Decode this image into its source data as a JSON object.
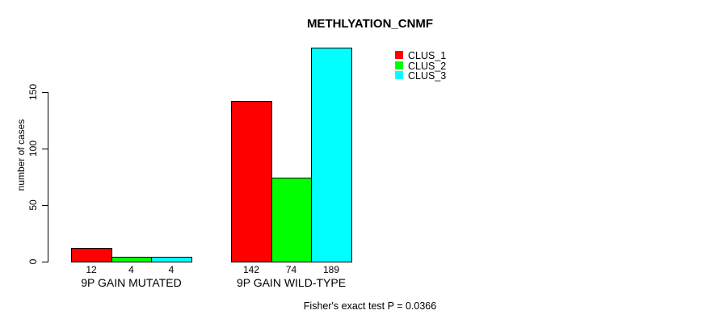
{
  "title": "METHLYATION_CNMF",
  "ylabel": "number of cases",
  "annotation": "Fisher's exact test P = 0.0366",
  "chart_data": {
    "type": "bar",
    "grouped": true,
    "title": "METHLYATION_CNMF",
    "xlabel": "",
    "ylabel": "number of cases",
    "categories": [
      "9P GAIN MUTATED",
      "9P GAIN WILD-TYPE"
    ],
    "series": [
      {
        "name": "CLUS_1",
        "color": "#ff0000",
        "values": [
          12,
          142
        ]
      },
      {
        "name": "CLUS_2",
        "color": "#00ff00",
        "values": [
          4,
          74
        ]
      },
      {
        "name": "CLUS_3",
        "color": "#00ffff",
        "values": [
          4,
          189
        ]
      }
    ],
    "bar_value_labels": [
      [
        12,
        4,
        4
      ],
      [
        142,
        74,
        189
      ]
    ],
    "yticks": [
      0,
      50,
      100,
      150
    ],
    "ylim": [
      0,
      189
    ],
    "grid": false,
    "bar_border_color": "#000000",
    "legend": {
      "position": "top-right",
      "entries": [
        "CLUS_1",
        "CLUS_2",
        "CLUS_3"
      ],
      "colors": [
        "#ff0000",
        "#00ff00",
        "#00ffff"
      ]
    },
    "annotation": "Fisher's exact test P = 0.0366"
  }
}
